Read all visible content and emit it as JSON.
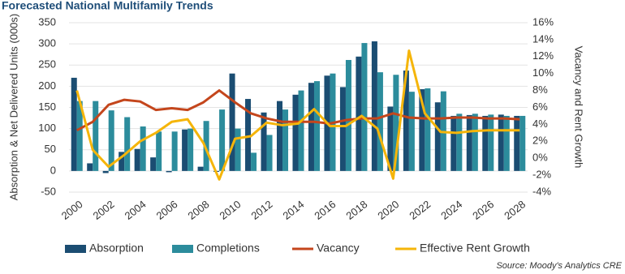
{
  "chart_data": {
    "type": "bar-line",
    "title": "Forecasted National Multifamily Trends",
    "y_label": "Absorption & Net Delivered Units (000s)",
    "y2_label": "Vacancy and Rent Growth",
    "source": "Source: Moody's Analytics CRE",
    "categories": [
      "2000",
      null,
      "2002",
      null,
      "2004",
      null,
      "2006",
      null,
      "2008",
      null,
      "2010",
      null,
      "2012",
      null,
      "2014",
      null,
      "2016",
      null,
      "2018",
      null,
      "2020",
      null,
      "2022",
      null,
      "2024",
      null,
      "2026",
      null,
      "2028"
    ],
    "ylim": [
      -50,
      350
    ],
    "yticks": [
      -50,
      0,
      50,
      100,
      150,
      200,
      250,
      300,
      350
    ],
    "y2lim": [
      -4,
      16
    ],
    "y2ticks": [
      {
        "value": -4,
        "label": "-4%"
      },
      {
        "value": -2,
        "label": "-2%"
      },
      {
        "value": 0,
        "label": "0%"
      },
      {
        "value": 2,
        "label": "2%"
      },
      {
        "value": 4,
        "label": "4%"
      },
      {
        "value": 6,
        "label": "6%"
      },
      {
        "value": 8,
        "label": "8%"
      },
      {
        "value": 10,
        "label": "10%"
      },
      {
        "value": 12,
        "label": "12%"
      },
      {
        "value": 14,
        "label": "14%"
      },
      {
        "value": 16,
        "label": "16%"
      }
    ],
    "grid": true,
    "legend": "bottom",
    "series": [
      {
        "name": "Absorption",
        "kind": "bar",
        "color": "#1b4d72",
        "values": [
          220,
          18,
          -5,
          45,
          52,
          32,
          -3,
          98,
          10,
          -2,
          230,
          170,
          138,
          165,
          180,
          208,
          225,
          198,
          270,
          306,
          152,
          237,
          193,
          162,
          130,
          132,
          130,
          133,
          130
        ]
      },
      {
        "name": "Completions",
        "kind": "bar",
        "color": "#2c8c9c",
        "values": [
          165,
          165,
          143,
          127,
          105,
          93,
          93,
          100,
          118,
          145,
          100,
          43,
          85,
          145,
          190,
          212,
          230,
          262,
          302,
          233,
          227,
          187,
          195,
          188,
          135,
          135,
          133,
          130,
          130
        ]
      },
      {
        "name": "Vacancy",
        "kind": "line",
        "axis": "y2",
        "color": "#c4461c",
        "values": [
          3.3,
          4.3,
          6.3,
          6.9,
          6.7,
          5.7,
          5.9,
          5.7,
          6.6,
          8.0,
          6.6,
          5.3,
          4.7,
          4.3,
          4.3,
          4.3,
          4.1,
          4.5,
          4.7,
          4.7,
          5.3,
          4.8,
          4.7,
          4.7,
          4.8,
          4.8,
          4.7,
          4.7,
          4.6
        ]
      },
      {
        "name": "Effective Rent Growth",
        "kind": "line",
        "axis": "y2",
        "color": "#f5b50a",
        "values": [
          8.0,
          1.0,
          -1.0,
          0.4,
          2.0,
          3.0,
          4.3,
          4.6,
          1.8,
          -2.5,
          2.3,
          2.6,
          4.2,
          3.9,
          4.1,
          5.8,
          3.8,
          3.8,
          5.0,
          3.5,
          -2.4,
          12.7,
          5.3,
          3.1,
          3.0,
          3.2,
          3.3,
          3.3,
          3.3
        ]
      }
    ]
  }
}
